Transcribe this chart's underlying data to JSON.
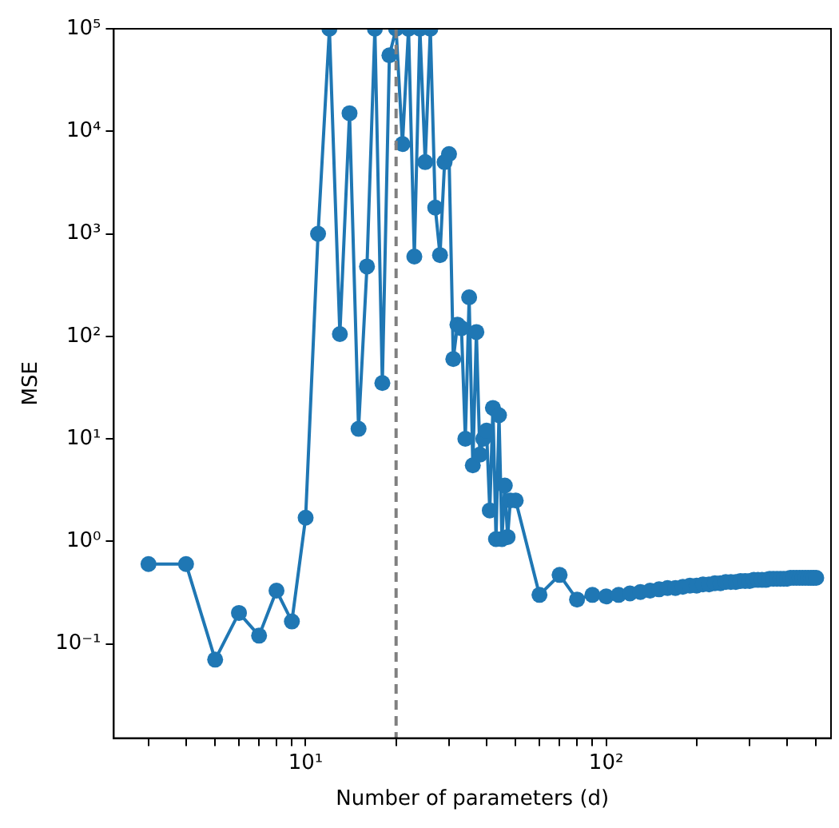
{
  "chart_data": {
    "type": "line",
    "xlabel": "Number of parameters (d)",
    "ylabel": "MSE",
    "log": "xy",
    "grid": false,
    "legend": false,
    "marker": "circle",
    "line_style": "solid",
    "xlim": [
      2.3,
      560
    ],
    "ylim": [
      0.012,
      100000
    ],
    "xticks": [
      {
        "value": 3,
        "label": null
      },
      {
        "value": 4,
        "label": null
      },
      {
        "value": 5,
        "label": null
      },
      {
        "value": 6,
        "label": null
      },
      {
        "value": 7,
        "label": null
      },
      {
        "value": 8,
        "label": null
      },
      {
        "value": 9,
        "label": null
      },
      {
        "value": 10,
        "label": "10¹"
      },
      {
        "value": 20,
        "label": null
      },
      {
        "value": 30,
        "label": null
      },
      {
        "value": 40,
        "label": null
      },
      {
        "value": 50,
        "label": null
      },
      {
        "value": 60,
        "label": null
      },
      {
        "value": 70,
        "label": null
      },
      {
        "value": 80,
        "label": null
      },
      {
        "value": 90,
        "label": null
      },
      {
        "value": 100,
        "label": "10²"
      },
      {
        "value": 200,
        "label": null
      },
      {
        "value": 300,
        "label": null
      },
      {
        "value": 400,
        "label": null
      },
      {
        "value": 500,
        "label": null
      }
    ],
    "yticks": [
      {
        "value": 0.1,
        "label": "10⁻¹"
      },
      {
        "value": 1,
        "label": "10⁰"
      },
      {
        "value": 10,
        "label": "10¹"
      },
      {
        "value": 100,
        "label": "10²"
      },
      {
        "value": 1000,
        "label": "10³"
      },
      {
        "value": 10000,
        "label": "10⁴"
      },
      {
        "value": 100000,
        "label": "10⁵"
      }
    ],
    "ref_lines": [
      {
        "axis": "x",
        "value": 20,
        "color": "#808080",
        "line_style": "dashed"
      }
    ],
    "x": [
      3,
      4,
      5,
      6,
      7,
      8,
      9,
      10,
      11,
      12,
      13,
      14,
      15,
      16,
      17,
      18,
      19,
      20,
      21,
      22,
      23,
      24,
      25,
      26,
      27,
      28,
      29,
      30,
      31,
      32,
      33,
      34,
      35,
      36,
      37,
      38,
      39,
      40,
      41,
      42,
      43,
      44,
      45,
      46,
      47,
      48,
      50,
      60,
      70,
      80,
      90,
      100,
      110,
      120,
      130,
      140,
      150,
      160,
      170,
      180,
      190,
      200,
      210,
      220,
      230,
      240,
      250,
      260,
      270,
      280,
      290,
      300,
      310,
      320,
      330,
      340,
      350,
      360,
      370,
      380,
      390,
      400,
      410,
      420,
      430,
      440,
      450,
      460,
      470,
      480,
      490,
      500
    ],
    "series": [
      {
        "color": "#1f77b4",
        "values": [
          0.6,
          0.6,
          0.07,
          0.2,
          0.12,
          0.33,
          0.165,
          1.7,
          1000,
          100000,
          105,
          15000,
          12.5,
          480,
          100000,
          35,
          55000,
          100000,
          7500,
          100000,
          600,
          100000,
          5000,
          100000,
          1800,
          620,
          5000,
          6000,
          60,
          130,
          120,
          10,
          240,
          5.5,
          110,
          7,
          10,
          12,
          2,
          20,
          1.05,
          17,
          1.05,
          3.5,
          1.1,
          2.5,
          2.5,
          0.3,
          0.47,
          0.27,
          0.3,
          0.29,
          0.3,
          0.31,
          0.32,
          0.33,
          0.34,
          0.35,
          0.35,
          0.36,
          0.37,
          0.37,
          0.38,
          0.38,
          0.39,
          0.39,
          0.4,
          0.4,
          0.4,
          0.41,
          0.41,
          0.41,
          0.42,
          0.42,
          0.42,
          0.42,
          0.43,
          0.43,
          0.43,
          0.43,
          0.43,
          0.43,
          0.44,
          0.44,
          0.44,
          0.44,
          0.44,
          0.44,
          0.44,
          0.44,
          0.44,
          0.44
        ]
      }
    ]
  }
}
